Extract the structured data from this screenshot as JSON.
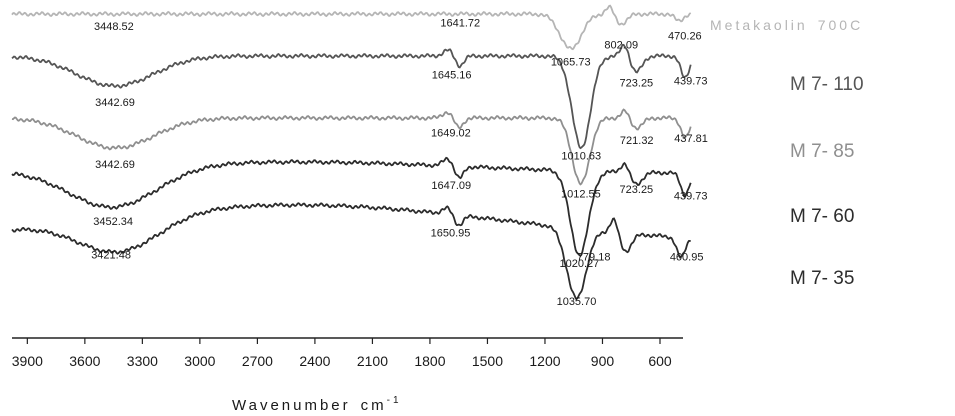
{
  "chart_data": {
    "type": "line",
    "title": "",
    "xlabel": "Wavenumber",
    "xunit": "cm",
    "xunit_exp": "-1",
    "ylabel": "",
    "xlim": [
      3980,
      480
    ],
    "x_reversed": true,
    "grid": false,
    "x_ticks": [
      "3900",
      "3600",
      "3300",
      "3000",
      "2700",
      "2400",
      "2100",
      "1800",
      "1500",
      "1200",
      "900",
      "600"
    ],
    "x_tick_values": [
      3900,
      3600,
      3300,
      3000,
      2700,
      2400,
      2100,
      1800,
      1500,
      1200,
      900,
      600
    ],
    "series": [
      {
        "name": "Metakaolin",
        "name_suffix": "700",
        "name_unit": "C",
        "color": "#b5b5b5",
        "peaks": [
          {
            "x": 3448.52,
            "label": "3448.52"
          },
          {
            "x": 1641.72,
            "label": "1641.72"
          },
          {
            "x": 1065.73,
            "label": "1065.73"
          },
          {
            "x": 802.09,
            "label": "802.09"
          },
          {
            "x": 470.26,
            "label": "470.26"
          }
        ]
      },
      {
        "name": "M 7- 110",
        "color": "#555555",
        "peaks": [
          {
            "x": 3442.69,
            "label": "3442.69"
          },
          {
            "x": 1645.16,
            "label": "1645.16"
          },
          {
            "x": 1010.63,
            "label": "1010.63"
          },
          {
            "x": 723.25,
            "label": "723.25"
          },
          {
            "x": 439.73,
            "label": "439.73"
          }
        ]
      },
      {
        "name": "M 7- 85",
        "color": "#8f8f8f",
        "peaks": [
          {
            "x": 3442.69,
            "label": "3442.69"
          },
          {
            "x": 1649.02,
            "label": "1649.02"
          },
          {
            "x": 1012.55,
            "label": "1012.55"
          },
          {
            "x": 721.32,
            "label": "721.32"
          },
          {
            "x": 437.81,
            "label": "437.81"
          }
        ]
      },
      {
        "name": "M 7- 60",
        "color": "#2c2c2c",
        "peaks": [
          {
            "x": 3452.34,
            "label": "3452.34"
          },
          {
            "x": 1647.09,
            "label": "1647.09"
          },
          {
            "x": 1020.27,
            "label": "1020.27"
          },
          {
            "x": 723.25,
            "label": "723.25"
          },
          {
            "x": 439.73,
            "label": "439.73"
          }
        ]
      },
      {
        "name": "M 7- 35",
        "color": "#2c2c2c",
        "peaks": [
          {
            "x": 3421.48,
            "label": "3421.48"
          },
          {
            "x": 1650.95,
            "label": "1650.95"
          },
          {
            "x": 1035.7,
            "label": "1035.70"
          },
          {
            "x": 779.18,
            "label": "779.18"
          },
          {
            "x": 460.95,
            "label": "460.95"
          }
        ]
      }
    ]
  }
}
